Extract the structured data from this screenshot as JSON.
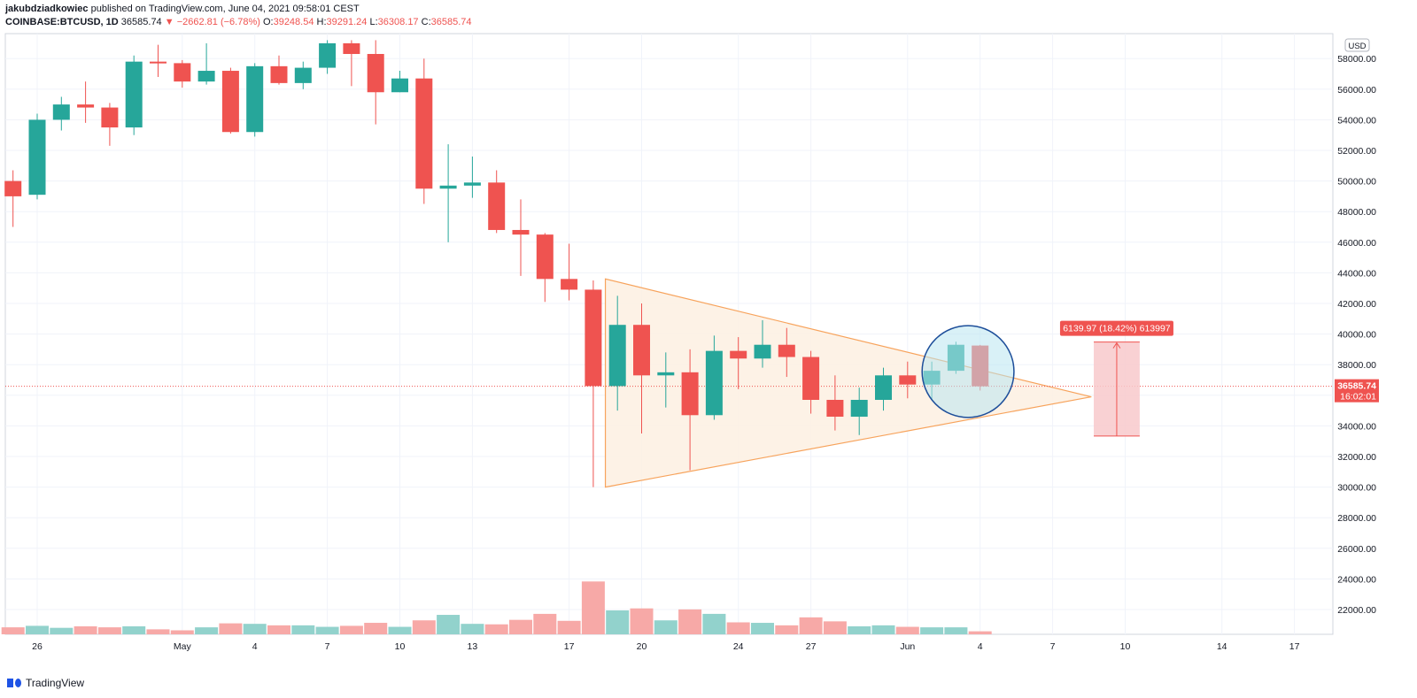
{
  "header": {
    "author": "jakubdziadkowiec",
    "published": "published on TradingView.com, June 04, 2021 09:58:01 CEST",
    "symbol": "COINBASE:BTCUSD, 1D",
    "last": "36585.74",
    "change": "−2662.81 (−6.78%)",
    "o_label": "O:",
    "o_value": "39248.54",
    "h_label": "H:",
    "h_value": "39291.24",
    "l_label": "L:",
    "l_value": "36308.17",
    "c_label": "C:",
    "c_value": "36585.74"
  },
  "footer": {
    "brand": "TradingView"
  },
  "colors": {
    "up": "#26a69a",
    "down": "#ef5350",
    "vol_up": "#92d2cc",
    "vol_down": "#f7a9a7",
    "triangle_fill": "#fdf0e2",
    "triangle_stroke": "#f7a35c",
    "circle_stroke": "#1d4e9a",
    "circle_fill": "#b9e6f0",
    "measure_fill": "#f8c9cb",
    "measure_stroke": "#ef5350"
  },
  "chart_data": {
    "type": "candlestick",
    "currency": "USD",
    "ylim": [
      19800,
      59200
    ],
    "y_ticks": [
      20000,
      22000,
      24000,
      26000,
      28000,
      30000,
      32000,
      34000,
      36000,
      38000,
      40000,
      42000,
      44000,
      46000,
      48000,
      50000,
      52000,
      54000,
      56000,
      58000
    ],
    "x_labels": [
      {
        "day": 1,
        "label": "26"
      },
      {
        "day": 7,
        "label": "May"
      },
      {
        "day": 10,
        "label": "4"
      },
      {
        "day": 13,
        "label": "7"
      },
      {
        "day": 16,
        "label": "10"
      },
      {
        "day": 19,
        "label": "13"
      },
      {
        "day": 23,
        "label": "17"
      },
      {
        "day": 26,
        "label": "20"
      },
      {
        "day": 30,
        "label": "24"
      },
      {
        "day": 33,
        "label": "27"
      },
      {
        "day": 37,
        "label": "Jun"
      },
      {
        "day": 40,
        "label": "4"
      },
      {
        "day": 43,
        "label": "7"
      },
      {
        "day": 46,
        "label": "10"
      },
      {
        "day": 50,
        "label": "14"
      },
      {
        "day": 53,
        "label": "17"
      }
    ],
    "candles": [
      {
        "o": 50000,
        "h": 50700,
        "l": 47000,
        "c": 49000
      },
      {
        "o": 49100,
        "h": 54400,
        "l": 48800,
        "c": 54000
      },
      {
        "o": 54000,
        "h": 55500,
        "l": 53300,
        "c": 55000
      },
      {
        "o": 55000,
        "h": 56500,
        "l": 53800,
        "c": 54800
      },
      {
        "o": 54800,
        "h": 55100,
        "l": 52300,
        "c": 53500
      },
      {
        "o": 53500,
        "h": 58200,
        "l": 53000,
        "c": 57800
      },
      {
        "o": 57800,
        "h": 58900,
        "l": 56800,
        "c": 57700
      },
      {
        "o": 57700,
        "h": 57900,
        "l": 56100,
        "c": 56500
      },
      {
        "o": 56500,
        "h": 59000,
        "l": 56300,
        "c": 57200
      },
      {
        "o": 57200,
        "h": 57400,
        "l": 53100,
        "c": 53200
      },
      {
        "o": 53200,
        "h": 57700,
        "l": 52900,
        "c": 57500
      },
      {
        "o": 57500,
        "h": 58200,
        "l": 56300,
        "c": 56400
      },
      {
        "o": 56400,
        "h": 57800,
        "l": 56000,
        "c": 57400
      },
      {
        "o": 57400,
        "h": 59200,
        "l": 57000,
        "c": 59000
      },
      {
        "o": 59000,
        "h": 59200,
        "l": 56200,
        "c": 58300
      },
      {
        "o": 58300,
        "h": 59200,
        "l": 53700,
        "c": 55800
      },
      {
        "o": 55800,
        "h": 57200,
        "l": 55800,
        "c": 56700
      },
      {
        "o": 56700,
        "h": 58000,
        "l": 48500,
        "c": 49500
      },
      {
        "o": 49500,
        "h": 52400,
        "l": 46000,
        "c": 49700
      },
      {
        "o": 49700,
        "h": 51600,
        "l": 48900,
        "c": 49900
      },
      {
        "o": 49900,
        "h": 50700,
        "l": 46600,
        "c": 46800
      },
      {
        "o": 46800,
        "h": 48800,
        "l": 43800,
        "c": 46500
      },
      {
        "o": 46500,
        "h": 46600,
        "l": 42100,
        "c": 43600
      },
      {
        "o": 43600,
        "h": 45900,
        "l": 42200,
        "c": 42900
      },
      {
        "o": 42900,
        "h": 43500,
        "l": 30000,
        "c": 36600
      },
      {
        "o": 36600,
        "h": 42500,
        "l": 35000,
        "c": 40600
      },
      {
        "o": 40600,
        "h": 42000,
        "l": 33500,
        "c": 37300
      },
      {
        "o": 37300,
        "h": 38800,
        "l": 35200,
        "c": 37500
      },
      {
        "o": 37500,
        "h": 39000,
        "l": 31100,
        "c": 34700
      },
      {
        "o": 34700,
        "h": 39900,
        "l": 34400,
        "c": 38900
      },
      {
        "o": 38900,
        "h": 39800,
        "l": 36400,
        "c": 38400
      },
      {
        "o": 38400,
        "h": 40900,
        "l": 37800,
        "c": 39300
      },
      {
        "o": 39300,
        "h": 40400,
        "l": 37200,
        "c": 38500
      },
      {
        "o": 38500,
        "h": 38900,
        "l": 34800,
        "c": 35700
      },
      {
        "o": 35700,
        "h": 37300,
        "l": 33700,
        "c": 34600
      },
      {
        "o": 34600,
        "h": 36500,
        "l": 33400,
        "c": 35700
      },
      {
        "o": 35700,
        "h": 37800,
        "l": 35000,
        "c": 37300
      },
      {
        "o": 37300,
        "h": 38200,
        "l": 35800,
        "c": 36700
      },
      {
        "o": 36700,
        "h": 38200,
        "l": 35700,
        "c": 37600
      },
      {
        "o": 37600,
        "h": 39500,
        "l": 37400,
        "c": 39300
      },
      {
        "o": 39248.54,
        "h": 39291.24,
        "l": 36308.17,
        "c": 36585.74
      }
    ],
    "volume_scale_max": 30000,
    "volumes": [
      1400,
      1700,
      1300,
      1600,
      1400,
      1600,
      1000,
      800,
      1400,
      2200,
      2100,
      1800,
      1800,
      1500,
      1700,
      2300,
      1500,
      2800,
      3900,
      2100,
      2000,
      2900,
      4100,
      2700,
      10600,
      4800,
      5200,
      2800,
      5000,
      4100,
      2400,
      2300,
      1800,
      3400,
      2600,
      1600,
      1800,
      1500,
      1400,
      1400,
      600
    ],
    "last_price_label": "36585.74",
    "countdown_label": "16:02:01",
    "currency_badge": "USD",
    "pattern_triangle": {
      "points": [
        [
          24.5,
          43600
        ],
        [
          24.5,
          30000
        ],
        [
          44.6,
          35900
        ]
      ]
    },
    "highlight_circle": {
      "center_day": 39.5,
      "center_price": 37550,
      "radius_days": 1.9
    },
    "measure": {
      "label": "6139.97 (18.42%) 613997",
      "from_price": 33340,
      "to_price": 39480,
      "day_start": 44.7,
      "day_end": 46.6
    }
  }
}
